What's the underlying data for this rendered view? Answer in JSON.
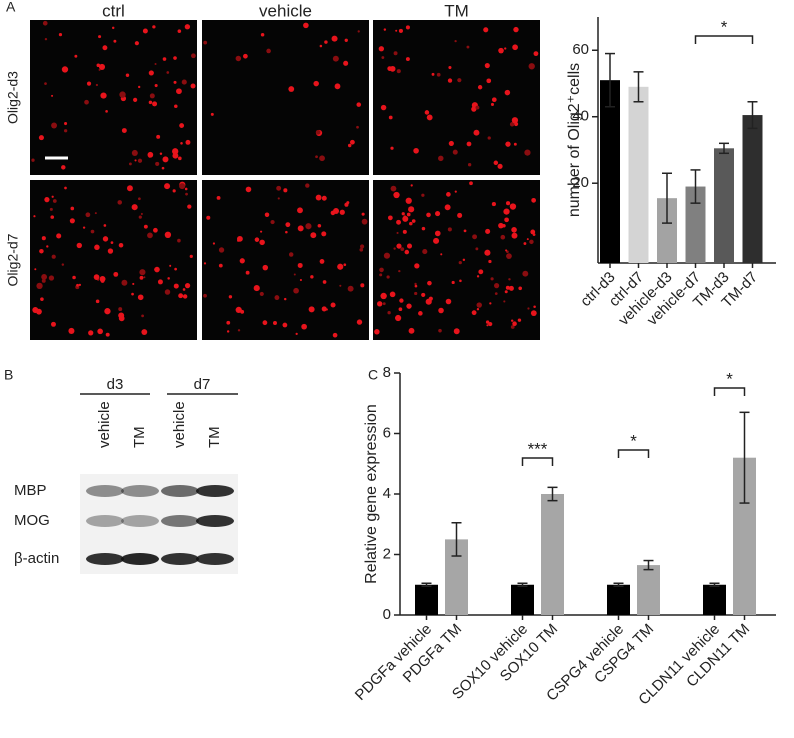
{
  "panels": {
    "a": {
      "label": "A",
      "columns": [
        "ctrl",
        "vehicle",
        "TM"
      ],
      "rows": [
        "Olig2-d3",
        "Olig2-d7"
      ]
    },
    "b": {
      "label": "B",
      "groups": [
        "d3",
        "d7"
      ],
      "lanes": [
        "vehicle",
        "TM",
        "vehicle",
        "TM"
      ],
      "proteins": [
        "MBP",
        "MOG",
        "β-actin"
      ]
    },
    "c": {
      "label": "C"
    }
  },
  "chart_data": [
    {
      "type": "bar",
      "ylabel": "number of Olig2⁺cells",
      "categories": [
        "ctrl-d3",
        "ctrl-d7",
        "vehicle-d3",
        "vehicle-d7",
        "TM-d3",
        "TM-d7"
      ],
      "values": [
        51,
        49,
        15.5,
        19,
        30.5,
        40.5
      ],
      "errors": [
        8,
        4.5,
        7.5,
        5,
        1.5,
        4
      ],
      "colors": [
        "#000000",
        "#d4d4d4",
        "#a3a3a3",
        "#808080",
        "#595959",
        "#2e2e2e"
      ],
      "ylim": [
        -4,
        70
      ],
      "yticks": [
        20,
        40,
        60
      ],
      "annotations": [
        {
          "text": "*",
          "between": [
            "vehicle-d7",
            "TM-d7"
          ]
        }
      ]
    },
    {
      "type": "bar",
      "ylabel": "Relative gene expression",
      "categories": [
        "PDGFa vehicle",
        "PDGFa TM",
        "SOX10 vehicle",
        "SOX10 TM",
        "CSPG4 vehicle",
        "CSPG4 TM",
        "CLDN11 vehicle",
        "CLDN11 TM"
      ],
      "values": [
        1,
        2.5,
        1,
        4,
        1,
        1.65,
        1,
        5.2
      ],
      "errors": [
        0.05,
        0.55,
        0.05,
        0.22,
        0.05,
        0.15,
        0.05,
        1.5
      ],
      "colors": [
        "#000000",
        "#a6a6a6",
        "#000000",
        "#a6a6a6",
        "#000000",
        "#a6a6a6",
        "#000000",
        "#a6a6a6"
      ],
      "ylim": [
        0,
        8
      ],
      "yticks": [
        0,
        2,
        4,
        6,
        8
      ],
      "annotations": [
        {
          "text": "***",
          "between": [
            "SOX10 vehicle",
            "SOX10 TM"
          ]
        },
        {
          "text": "*",
          "between": [
            "CSPG4 vehicle",
            "CSPG4 TM"
          ]
        },
        {
          "text": "*",
          "between": [
            "CLDN11 vehicle",
            "CLDN11 TM"
          ]
        }
      ]
    }
  ]
}
